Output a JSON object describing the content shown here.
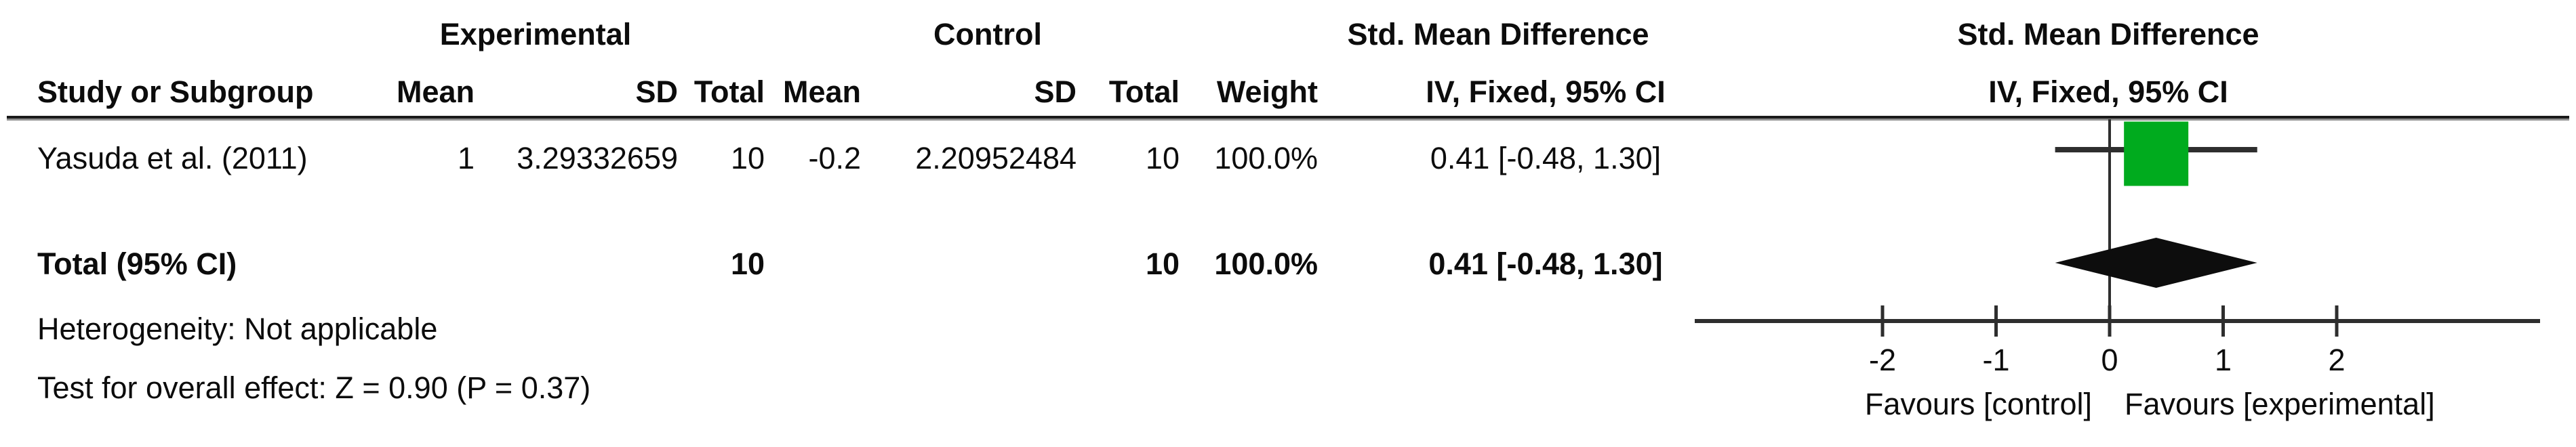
{
  "table": {
    "group_headers": {
      "experimental": "Experimental",
      "control": "Control",
      "smd_text_col": "Std. Mean Difference",
      "smd_plot_col": "Std. Mean Difference"
    },
    "columns": {
      "study": "Study or Subgroup",
      "mean_exp": "Mean",
      "sd_exp": "SD",
      "total_exp": "Total",
      "mean_ctl": "Mean",
      "sd_ctl": "SD",
      "total_ctl": "Total",
      "weight": "Weight",
      "ci_text": "IV, Fixed, 95% CI",
      "ci_plot": "IV, Fixed, 95% CI"
    },
    "rows": [
      {
        "study": "Yasuda et al. (2011)",
        "mean_exp": "1",
        "sd_exp": "3.29332659",
        "total_exp": "10",
        "mean_ctl": "-0.2",
        "sd_ctl": "2.20952484",
        "total_ctl": "10",
        "weight": "100.0%",
        "ci": "0.41 [-0.48, 1.30]"
      }
    ],
    "total_row": {
      "label": "Total (95% CI)",
      "total_exp": "10",
      "total_ctl": "10",
      "weight": "100.0%",
      "ci": "0.41 [-0.48, 1.30]"
    },
    "footnotes": {
      "heterogeneity": "Heterogeneity: Not applicable",
      "overall_effect": "Test for overall effect: Z = 0.90 (P = 0.37)"
    }
  },
  "chart_data": {
    "type": "scatter",
    "subtype": "forest-plot",
    "effect_measure": "Std. Mean Difference",
    "model": "IV, Fixed, 95% CI",
    "studies": [
      {
        "name": "Yasuda et al. (2011)",
        "estimate": 0.41,
        "ci_low": -0.48,
        "ci_high": 1.3,
        "weight_pct": 100.0
      }
    ],
    "total": {
      "label": "Total (95% CI)",
      "estimate": 0.41,
      "ci_low": -0.48,
      "ci_high": 1.3
    },
    "axis": {
      "ticks": [
        -2,
        -1,
        0,
        1,
        2
      ],
      "xmin": -3.65,
      "xmax": 3.8,
      "grid": false
    },
    "xlabels": {
      "left": "Favours [control]",
      "right": "Favours [experimental]"
    },
    "colors": {
      "marker": "#00ab1e",
      "diamond": "#0d0d0d",
      "line": "#2e2e2e"
    }
  }
}
